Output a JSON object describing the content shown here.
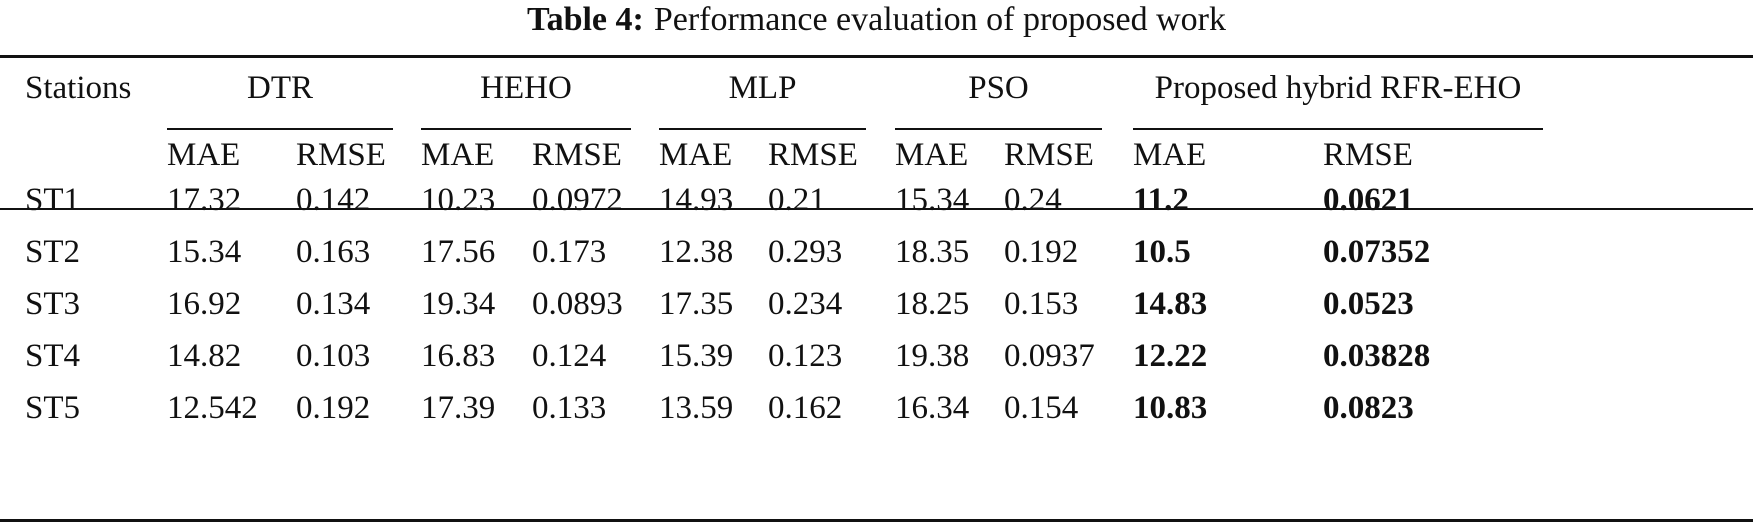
{
  "caption": {
    "label": "Table 4:",
    "text": "Performance evaluation of proposed work"
  },
  "header": {
    "stations": "Stations",
    "groups": [
      "DTR",
      "HEHO",
      "MLP",
      "PSO",
      "Proposed hybrid RFR-EHO"
    ],
    "metrics": [
      "MAE",
      "RMSE"
    ]
  },
  "rows": [
    {
      "station": "ST1",
      "values": [
        "17.32",
        "0.142",
        "10.23",
        "0.0972",
        "14.93",
        "0.21",
        "15.34",
        "0.24",
        "11.2",
        "0.0621"
      ]
    },
    {
      "station": "ST2",
      "values": [
        "15.34",
        "0.163",
        "17.56",
        "0.173",
        "12.38",
        "0.293",
        "18.35",
        "0.192",
        "10.5",
        "0.07352"
      ]
    },
    {
      "station": "ST3",
      "values": [
        "16.92",
        "0.134",
        "19.34",
        "0.0893",
        "17.35",
        "0.234",
        "18.25",
        "0.153",
        "14.83",
        "0.0523"
      ]
    },
    {
      "station": "ST4",
      "values": [
        "14.82",
        "0.103",
        "16.83",
        "0.124",
        "15.39",
        "0.123",
        "19.38",
        "0.0937",
        "12.22",
        "0.03828"
      ]
    },
    {
      "station": "ST5",
      "values": [
        "12.542",
        "0.192",
        "17.39",
        "0.133",
        "13.59",
        "0.162",
        "16.34",
        "0.154",
        "10.83",
        "0.0823"
      ]
    }
  ]
}
